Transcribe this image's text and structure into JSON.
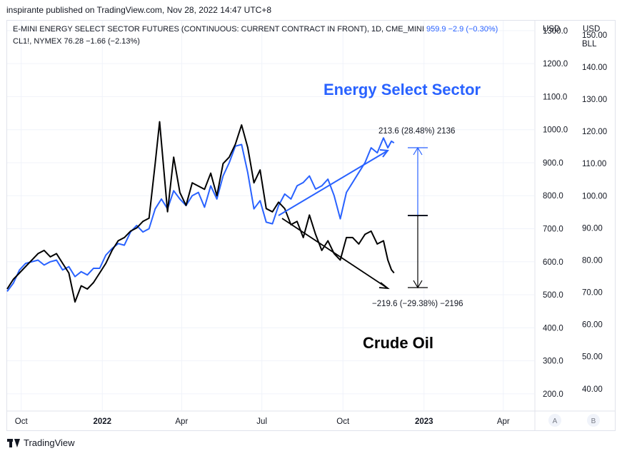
{
  "header": {
    "published_by": "inspirante published on TradingView.com, Nov 28, 2022 14:47 UTC+8"
  },
  "legend": {
    "series1_title": "E-MINI ENERGY SELECT SECTOR FUTURES (CONTINUOUS: CURRENT CONTRACT IN FRONT), 1D, CME_MINI",
    "series1_values": "959.9  −2.9 (−0.30%)",
    "series2_title": "CL1!, NYMEX",
    "series2_values": "76.28  −1.66 (−2.13%)"
  },
  "footer": {
    "brand": "TradingView"
  },
  "chart_data": {
    "type": "line",
    "x_ticks": [
      "Oct",
      "2022",
      "Apr",
      "Jul",
      "Oct",
      "2023",
      "Apr"
    ],
    "left_axis": {
      "unit": "USD",
      "ticks": [
        "1300.0",
        "1200.0",
        "1100.0",
        "1000.0",
        "900.0",
        "800.0",
        "700.0",
        "600.0",
        "500.0",
        "400.0",
        "300.0",
        "200.0"
      ],
      "range": [
        150,
        1330
      ]
    },
    "right_axis": {
      "unit": "USD",
      "unit2": "BLL",
      "ticks": [
        "150.00",
        "140.00",
        "130.00",
        "120.00",
        "110.00",
        "100.00",
        "90.00",
        "80.00",
        "70.00",
        "60.00",
        "50.00",
        "40.00"
      ],
      "range": [
        33.3,
        154.4
      ]
    },
    "scale_badges": [
      "A",
      "B"
    ],
    "annotations": {
      "energy_label": "Energy Select Sector",
      "oil_label": "Crude Oil",
      "energy_measure": "213.6 (28.48%) 2136",
      "oil_measure": "−219.6 (−29.38%) −2196"
    },
    "colors": {
      "energy": "#2962ff",
      "oil": "#000000",
      "grid": "#f0f3fa",
      "axis_text": "#131722"
    },
    "series": [
      {
        "name": "E-MINI ENERGY SELECT SECTOR FUTURES",
        "axis": "left",
        "points": [
          [
            "2021-09-15",
            510
          ],
          [
            "2021-09-22",
            535
          ],
          [
            "2021-09-29",
            575
          ],
          [
            "2021-10-06",
            595
          ],
          [
            "2021-10-13",
            600
          ],
          [
            "2021-10-20",
            605
          ],
          [
            "2021-10-27",
            590
          ],
          [
            "2021-11-03",
            600
          ],
          [
            "2021-11-10",
            605
          ],
          [
            "2021-11-17",
            575
          ],
          [
            "2021-11-24",
            585
          ],
          [
            "2021-12-01",
            555
          ],
          [
            "2021-12-08",
            570
          ],
          [
            "2021-12-15",
            560
          ],
          [
            "2021-12-22",
            580
          ],
          [
            "2021-12-29",
            580
          ],
          [
            "2022-01-05",
            620
          ],
          [
            "2022-01-12",
            640
          ],
          [
            "2022-01-19",
            655
          ],
          [
            "2022-01-26",
            650
          ],
          [
            "2022-02-02",
            690
          ],
          [
            "2022-02-09",
            710
          ],
          [
            "2022-02-16",
            690
          ],
          [
            "2022-02-23",
            700
          ],
          [
            "2022-03-02",
            760
          ],
          [
            "2022-03-09",
            790
          ],
          [
            "2022-03-16",
            760
          ],
          [
            "2022-03-23",
            815
          ],
          [
            "2022-03-30",
            790
          ],
          [
            "2022-04-06",
            770
          ],
          [
            "2022-04-13",
            800
          ],
          [
            "2022-04-20",
            810
          ],
          [
            "2022-04-27",
            765
          ],
          [
            "2022-05-04",
            830
          ],
          [
            "2022-05-11",
            790
          ],
          [
            "2022-05-18",
            860
          ],
          [
            "2022-05-25",
            900
          ],
          [
            "2022-06-01",
            950
          ],
          [
            "2022-06-08",
            955
          ],
          [
            "2022-06-15",
            870
          ],
          [
            "2022-06-22",
            760
          ],
          [
            "2022-06-29",
            785
          ],
          [
            "2022-07-06",
            720
          ],
          [
            "2022-07-13",
            715
          ],
          [
            "2022-07-20",
            770
          ],
          [
            "2022-07-27",
            805
          ],
          [
            "2022-08-03",
            790
          ],
          [
            "2022-08-10",
            830
          ],
          [
            "2022-08-17",
            840
          ],
          [
            "2022-08-24",
            860
          ],
          [
            "2022-08-31",
            820
          ],
          [
            "2022-09-07",
            830
          ],
          [
            "2022-09-14",
            850
          ],
          [
            "2022-09-21",
            800
          ],
          [
            "2022-09-28",
            730
          ],
          [
            "2022-10-05",
            810
          ],
          [
            "2022-10-12",
            840
          ],
          [
            "2022-10-19",
            870
          ],
          [
            "2022-10-26",
            900
          ],
          [
            "2022-11-02",
            945
          ],
          [
            "2022-11-09",
            930
          ],
          [
            "2022-11-16",
            975
          ],
          [
            "2022-11-21",
            945
          ],
          [
            "2022-11-25",
            965
          ],
          [
            "2022-11-28",
            960
          ]
        ]
      },
      {
        "name": "CL1!, NYMEX",
        "axis": "right",
        "points": [
          [
            "2021-09-15",
            71
          ],
          [
            "2021-09-22",
            74
          ],
          [
            "2021-09-29",
            76
          ],
          [
            "2021-10-06",
            78
          ],
          [
            "2021-10-13",
            80
          ],
          [
            "2021-10-20",
            82
          ],
          [
            "2021-10-27",
            83
          ],
          [
            "2021-11-03",
            81
          ],
          [
            "2021-11-10",
            82
          ],
          [
            "2021-11-17",
            79
          ],
          [
            "2021-11-24",
            76
          ],
          [
            "2021-12-01",
            67
          ],
          [
            "2021-12-08",
            72
          ],
          [
            "2021-12-15",
            71
          ],
          [
            "2021-12-22",
            73
          ],
          [
            "2021-12-29",
            76
          ],
          [
            "2022-01-05",
            79
          ],
          [
            "2022-01-12",
            83
          ],
          [
            "2022-01-19",
            86
          ],
          [
            "2022-01-26",
            87
          ],
          [
            "2022-02-02",
            89
          ],
          [
            "2022-02-09",
            90
          ],
          [
            "2022-02-16",
            92
          ],
          [
            "2022-02-23",
            93
          ],
          [
            "2022-03-02",
            110
          ],
          [
            "2022-03-07",
            123
          ],
          [
            "2022-03-16",
            95
          ],
          [
            "2022-03-23",
            112
          ],
          [
            "2022-03-30",
            101
          ],
          [
            "2022-04-06",
            97
          ],
          [
            "2022-04-13",
            104
          ],
          [
            "2022-04-20",
            103
          ],
          [
            "2022-04-27",
            102
          ],
          [
            "2022-05-04",
            107
          ],
          [
            "2022-05-11",
            100
          ],
          [
            "2022-05-18",
            110
          ],
          [
            "2022-05-25",
            112
          ],
          [
            "2022-06-01",
            116
          ],
          [
            "2022-06-08",
            122
          ],
          [
            "2022-06-15",
            115
          ],
          [
            "2022-06-22",
            104
          ],
          [
            "2022-06-29",
            108
          ],
          [
            "2022-07-06",
            96
          ],
          [
            "2022-07-13",
            95
          ],
          [
            "2022-07-20",
            98
          ],
          [
            "2022-07-27",
            96
          ],
          [
            "2022-08-03",
            91
          ],
          [
            "2022-08-10",
            92
          ],
          [
            "2022-08-17",
            87
          ],
          [
            "2022-08-24",
            94
          ],
          [
            "2022-08-31",
            88
          ],
          [
            "2022-09-07",
            83
          ],
          [
            "2022-09-14",
            86
          ],
          [
            "2022-09-21",
            82
          ],
          [
            "2022-09-28",
            80
          ],
          [
            "2022-10-05",
            87
          ],
          [
            "2022-10-12",
            87
          ],
          [
            "2022-10-19",
            85
          ],
          [
            "2022-10-26",
            88
          ],
          [
            "2022-11-02",
            89
          ],
          [
            "2022-11-09",
            85
          ],
          [
            "2022-11-16",
            86
          ],
          [
            "2022-11-21",
            80
          ],
          [
            "2022-11-25",
            77
          ],
          [
            "2022-11-28",
            76
          ]
        ]
      }
    ]
  }
}
